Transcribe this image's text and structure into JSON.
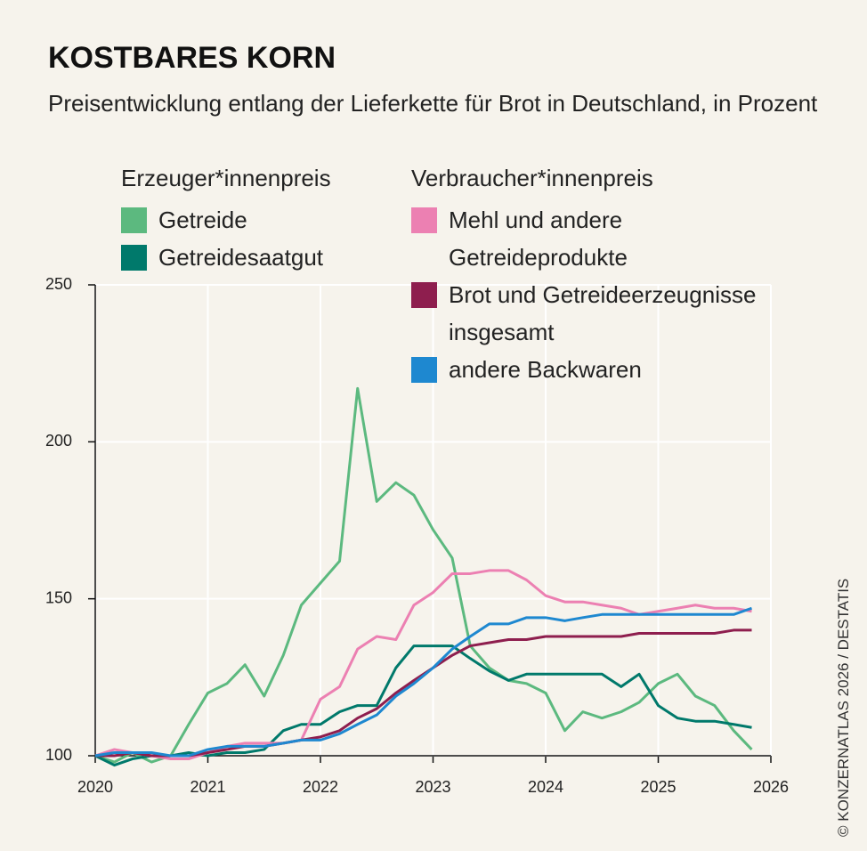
{
  "chart_data": {
    "type": "line",
    "title": "KOSTBARES KORN",
    "subtitle": "Preisentwicklung entlang der Lieferkette für Brot in Deutschland, in Prozent",
    "legend_titles": [
      "Erzeuger*innenpreis",
      "Verbraucher*innenpreis"
    ],
    "source": "© KONZERNATLAS 2026 / DESTATIS",
    "x": [
      2020,
      2020.17,
      2020.33,
      2020.5,
      2020.67,
      2020.83,
      2021,
      2021.17,
      2021.33,
      2021.5,
      2021.67,
      2021.83,
      2022,
      2022.17,
      2022.33,
      2022.5,
      2022.67,
      2022.83,
      2023,
      2023.17,
      2023.33,
      2023.5,
      2023.67,
      2023.83,
      2024,
      2024.17,
      2024.33,
      2024.5,
      2024.67,
      2024.83,
      2025,
      2025.17,
      2025.33,
      2025.5,
      2025.67,
      2025.83
    ],
    "series": [
      {
        "name": "Getreide",
        "color": "#5cb97f",
        "values": [
          100,
          98,
          101,
          98,
          100,
          110,
          120,
          123,
          129,
          119,
          132,
          148,
          155,
          162,
          217,
          181,
          187,
          183,
          172,
          163,
          135,
          128,
          124,
          123,
          120,
          108,
          114,
          112,
          114,
          117,
          123,
          126,
          119,
          116,
          108,
          102
        ]
      },
      {
        "name": "Getreidesaatgut",
        "color": "#00796b",
        "values": [
          100,
          97,
          99,
          100,
          100,
          101,
          100,
          101,
          101,
          102,
          108,
          110,
          110,
          114,
          116,
          116,
          128,
          135,
          135,
          135,
          131,
          127,
          124,
          126,
          126,
          126,
          126,
          126,
          122,
          126,
          116,
          112,
          111,
          111,
          110,
          109
        ]
      },
      {
        "name": "Mehl und andere Getreideprodukte",
        "color": "#ec80b2",
        "values": [
          100,
          102,
          101,
          100,
          99,
          99,
          101,
          103,
          104,
          104,
          104,
          105,
          118,
          122,
          134,
          138,
          137,
          148,
          152,
          158,
          158,
          159,
          159,
          156,
          151,
          149,
          149,
          148,
          147,
          145,
          146,
          147,
          148,
          147,
          147,
          146
        ]
      },
      {
        "name": "Brot und Getreideerzeugnisse insgesamt",
        "color": "#8e1e4e",
        "values": [
          100,
          100,
          101,
          100,
          100,
          100,
          101,
          102,
          103,
          103,
          104,
          105,
          106,
          108,
          112,
          115,
          120,
          124,
          128,
          132,
          135,
          136,
          137,
          137,
          138,
          138,
          138,
          138,
          138,
          139,
          139,
          139,
          139,
          139,
          140,
          140
        ]
      },
      {
        "name": "andere Backwaren",
        "color": "#1e88d0",
        "values": [
          100,
          101,
          101,
          101,
          100,
          100,
          102,
          103,
          103,
          103,
          104,
          105,
          105,
          107,
          110,
          113,
          119,
          123,
          128,
          134,
          138,
          142,
          142,
          144,
          144,
          143,
          144,
          145,
          145,
          145,
          145,
          145,
          145,
          145,
          145,
          147
        ]
      }
    ],
    "xlim": [
      2020,
      2026
    ],
    "xticks": [
      2020,
      2021,
      2022,
      2023,
      2024,
      2025,
      2026
    ],
    "ylim": [
      100,
      250
    ],
    "yticks": [
      100,
      150,
      200,
      250
    ],
    "grid": true
  }
}
